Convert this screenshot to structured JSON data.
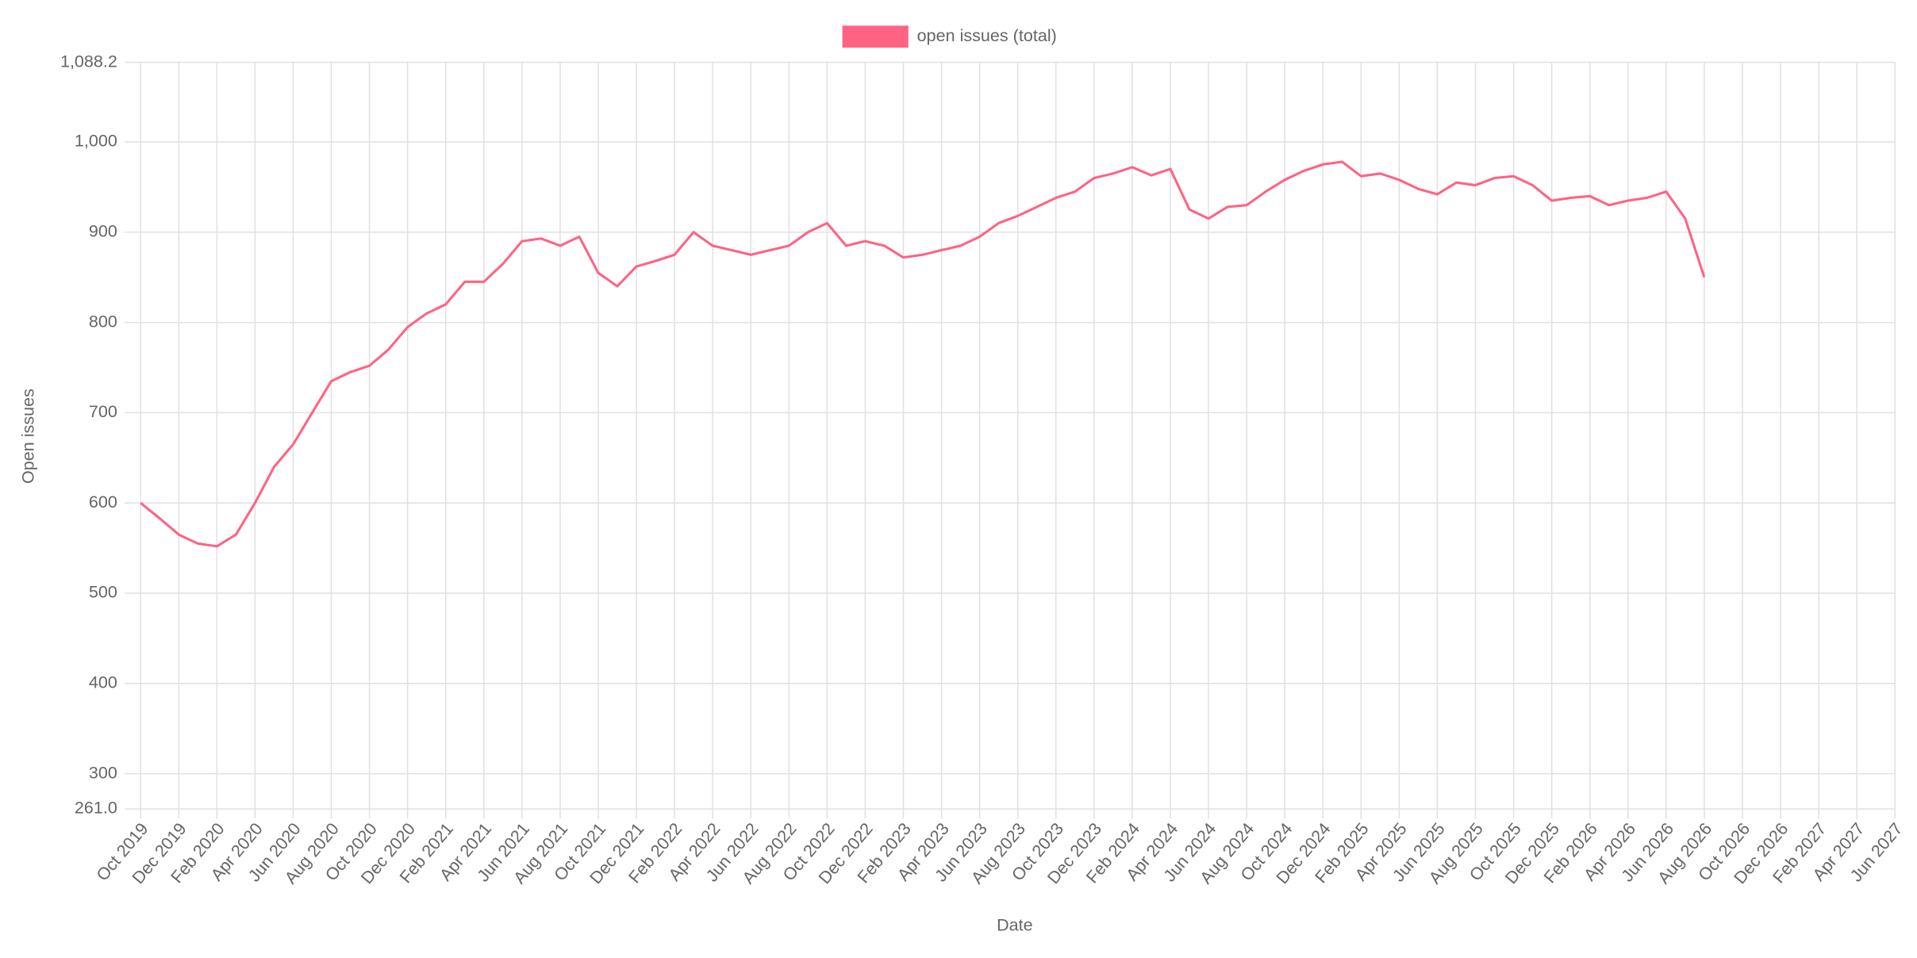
{
  "chart_data": {
    "type": "line",
    "y_label": "Open issues",
    "x_label": "Date",
    "x": [
      "2019-10",
      "2019-11",
      "2019-12",
      "2020-01",
      "2020-02",
      "2020-03",
      "2020-04",
      "2020-05",
      "2020-06",
      "2020-07",
      "2020-08",
      "2020-09",
      "2020-10",
      "2020-11",
      "2020-12",
      "2021-01",
      "2021-02",
      "2021-03",
      "2021-04",
      "2021-05",
      "2021-06",
      "2021-07",
      "2021-08",
      "2021-09",
      "2021-10",
      "2021-11",
      "2021-12",
      "2022-01",
      "2022-02",
      "2022-03",
      "2022-04",
      "2022-05",
      "2022-06",
      "2022-07",
      "2022-08",
      "2022-09",
      "2022-10",
      "2022-11",
      "2022-12",
      "2023-01",
      "2023-02",
      "2023-03",
      "2023-04",
      "2023-05",
      "2023-06",
      "2023-07",
      "2023-08",
      "2023-09",
      "2023-10",
      "2023-11",
      "2023-12",
      "2024-01",
      "2024-02",
      "2024-03",
      "2024-04",
      "2024-05",
      "2024-06",
      "2024-07",
      "2024-08",
      "2024-09",
      "2024-10",
      "2024-11",
      "2024-12",
      "2025-01",
      "2025-02",
      "2025-03",
      "2025-04",
      "2025-05",
      "2025-06",
      "2025-07",
      "2025-08",
      "2025-09",
      "2025-10",
      "2025-11",
      "2025-12",
      "2026-01",
      "2026-02",
      "2026-03",
      "2026-04",
      "2026-05",
      "2026-06",
      "2026-07",
      "2026-08"
    ],
    "series": [
      {
        "name": "open issues (total)",
        "color": "#ff6384",
        "values": [
          600,
          583,
          565,
          555,
          552,
          565,
          600,
          640,
          665,
          700,
          735,
          745,
          752,
          770,
          795,
          810,
          820,
          845,
          845,
          865,
          890,
          893,
          885,
          895,
          855,
          840,
          862,
          868,
          875,
          900,
          885,
          880,
          875,
          880,
          885,
          900,
          910,
          885,
          890,
          885,
          872,
          875,
          880,
          885,
          895,
          910,
          918,
          928,
          938,
          945,
          960,
          965,
          972,
          963,
          970,
          925,
          915,
          928,
          930,
          945,
          958,
          968,
          975,
          978,
          962,
          965,
          958,
          948,
          942,
          955,
          952,
          960,
          962,
          952,
          935,
          938,
          940,
          930,
          935,
          938,
          945,
          915,
          850
        ]
      }
    ],
    "xlim": [
      "2019-10",
      "2027-06"
    ],
    "xticks": [
      {
        "value": "2019-10",
        "label": "Oct 2019"
      },
      {
        "value": "2019-12",
        "label": "Dec 2019"
      },
      {
        "value": "2020-02",
        "label": "Feb 2020"
      },
      {
        "value": "2020-04",
        "label": "Apr 2020"
      },
      {
        "value": "2020-06",
        "label": "Jun 2020"
      },
      {
        "value": "2020-08",
        "label": "Aug 2020"
      },
      {
        "value": "2020-10",
        "label": "Oct 2020"
      },
      {
        "value": "2020-12",
        "label": "Dec 2020"
      },
      {
        "value": "2021-02",
        "label": "Feb 2021"
      },
      {
        "value": "2021-04",
        "label": "Apr 2021"
      },
      {
        "value": "2021-06",
        "label": "Jun 2021"
      },
      {
        "value": "2021-08",
        "label": "Aug 2021"
      },
      {
        "value": "2021-10",
        "label": "Oct 2021"
      },
      {
        "value": "2021-12",
        "label": "Dec 2021"
      },
      {
        "value": "2022-02",
        "label": "Feb 2022"
      },
      {
        "value": "2022-04",
        "label": "Apr 2022"
      },
      {
        "value": "2022-06",
        "label": "Jun 2022"
      },
      {
        "value": "2022-08",
        "label": "Aug 2022"
      },
      {
        "value": "2022-10",
        "label": "Oct 2022"
      },
      {
        "value": "2022-12",
        "label": "Dec 2022"
      },
      {
        "value": "2023-02",
        "label": "Feb 2023"
      },
      {
        "value": "2023-04",
        "label": "Apr 2023"
      },
      {
        "value": "2023-06",
        "label": "Jun 2023"
      },
      {
        "value": "2023-08",
        "label": "Aug 2023"
      },
      {
        "value": "2023-10",
        "label": "Oct 2023"
      },
      {
        "value": "2023-12",
        "label": "Dec 2023"
      },
      {
        "value": "2024-02",
        "label": "Feb 2024"
      },
      {
        "value": "2024-04",
        "label": "Apr 2024"
      },
      {
        "value": "2024-06",
        "label": "Jun 2024"
      },
      {
        "value": "2024-08",
        "label": "Aug 2024"
      },
      {
        "value": "2024-10",
        "label": "Oct 2024"
      },
      {
        "value": "2024-12",
        "label": "Dec 2024"
      },
      {
        "value": "2025-02",
        "label": "Feb 2025"
      },
      {
        "value": "2025-04",
        "label": "Apr 2025"
      },
      {
        "value": "2025-06",
        "label": "Jun 2025"
      },
      {
        "value": "2025-08",
        "label": "Aug 2025"
      },
      {
        "value": "2025-10",
        "label": "Oct 2025"
      },
      {
        "value": "2025-12",
        "label": "Dec 2025"
      },
      {
        "value": "2026-02",
        "label": "Feb 2026"
      },
      {
        "value": "2026-04",
        "label": "Apr 2026"
      },
      {
        "value": "2026-06",
        "label": "Jun 2026"
      },
      {
        "value": "2026-08",
        "label": "Aug 2026"
      },
      {
        "value": "2026-10",
        "label": "Oct 2026"
      },
      {
        "value": "2026-12",
        "label": "Dec 2026"
      },
      {
        "value": "2027-02",
        "label": "Feb 2027"
      },
      {
        "value": "2027-04",
        "label": "Apr 2027"
      },
      {
        "value": "2027-06",
        "label": "Jun 2027"
      }
    ],
    "ylim": [
      261.0,
      1088.2
    ],
    "yticks": [
      {
        "value": 261.0,
        "label": "261.0"
      },
      300,
      400,
      500,
      600,
      700,
      800,
      900,
      {
        "value": 1000,
        "label": "1,000"
      },
      {
        "value": 1088.2,
        "label": "1,088.2"
      }
    ],
    "grid": true,
    "legend": "top"
  }
}
